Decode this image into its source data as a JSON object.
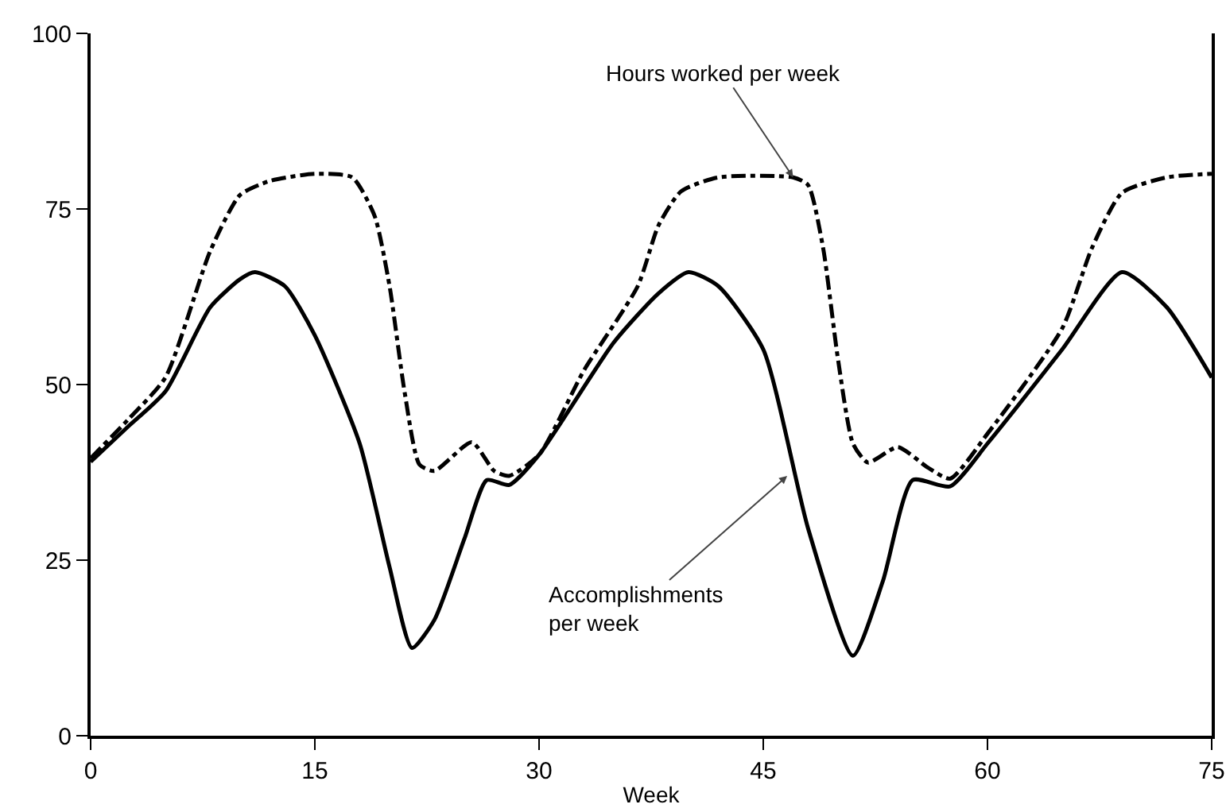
{
  "chart_data": {
    "type": "line",
    "xlabel": "Week",
    "xlim": [
      0,
      75
    ],
    "xticks": [
      0,
      15,
      30,
      45,
      60,
      75
    ],
    "ylim": [
      0,
      100
    ],
    "yticks": [
      0,
      25,
      50,
      75,
      100
    ],
    "grid": false,
    "legend": false,
    "marker": "none",
    "series": [
      {
        "color": "#000000",
        "line_style": "solid",
        "x": [
          0,
          2.5,
          5,
          8,
          10,
          11,
          13,
          15,
          18,
          20,
          21.5,
          23,
          25,
          26.5,
          28,
          30,
          35,
          38,
          40,
          42,
          45,
          48,
          51,
          53,
          55,
          57.5,
          60,
          65,
          69,
          72,
          75
        ],
        "values": [
          39,
          44,
          49,
          61,
          65,
          66,
          64,
          57,
          41.6,
          24,
          12.5,
          16.5,
          28,
          36.4,
          35.7,
          40,
          56,
          63,
          66,
          64,
          55,
          29.5,
          11.4,
          22,
          36.4,
          35.5,
          41.6,
          55,
          66,
          61,
          51
        ]
      },
      {
        "color": "#000000",
        "line_style": "dashed",
        "x": [
          0,
          2.5,
          5,
          8,
          10,
          12,
          15,
          17.5,
          19,
          20,
          21,
          22,
          23,
          25.5,
          27,
          28,
          30,
          33,
          36.6,
          38,
          39.5,
          42,
          47,
          48,
          49,
          50,
          51,
          52,
          54,
          56,
          57.5,
          60,
          65,
          67,
          69,
          72,
          75
        ],
        "values": [
          39.5,
          45,
          51,
          69,
          77,
          79,
          80,
          79.5,
          74,
          64,
          49,
          38.6,
          37.7,
          41.8,
          37.7,
          37,
          40,
          52,
          64,
          72.7,
          77.5,
          79.5,
          79.5,
          78.4,
          69.5,
          53.6,
          41.6,
          38.9,
          41.1,
          38.2,
          36.6,
          43,
          58,
          69.5,
          77.3,
          79.5,
          80
        ]
      }
    ],
    "annotations": [
      {
        "text": "Hours worked per week",
        "x": 47,
        "y": 79.5
      },
      {
        "text": "Accomplishments per week",
        "x": 46.6,
        "y": 37
      }
    ]
  }
}
